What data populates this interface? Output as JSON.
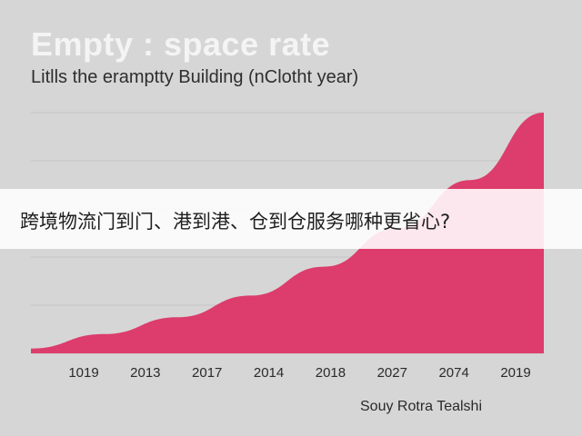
{
  "overlay": {
    "text": "跨境物流门到门、港到港、仓到仓服务哪种更省心?"
  },
  "source": "Souy Rotra Tealshi",
  "colors": {
    "background": "#d6d6d6",
    "area_fill": "#dc3d6c",
    "grid": "#c4c4c4"
  },
  "chart_data": {
    "type": "area",
    "title": "Empty : space rate",
    "subtitle": "Litlls the eramptty Building (nClotht year)",
    "categories": [
      "1019",
      "2013",
      "2017",
      "2014",
      "2018",
      "2027",
      "2074",
      "2019"
    ],
    "series": [
      {
        "values": [
          2,
          8,
          15,
          24,
          36,
          52,
          72,
          100
        ]
      }
    ],
    "ylim": [
      0,
      100
    ],
    "grid": true
  }
}
